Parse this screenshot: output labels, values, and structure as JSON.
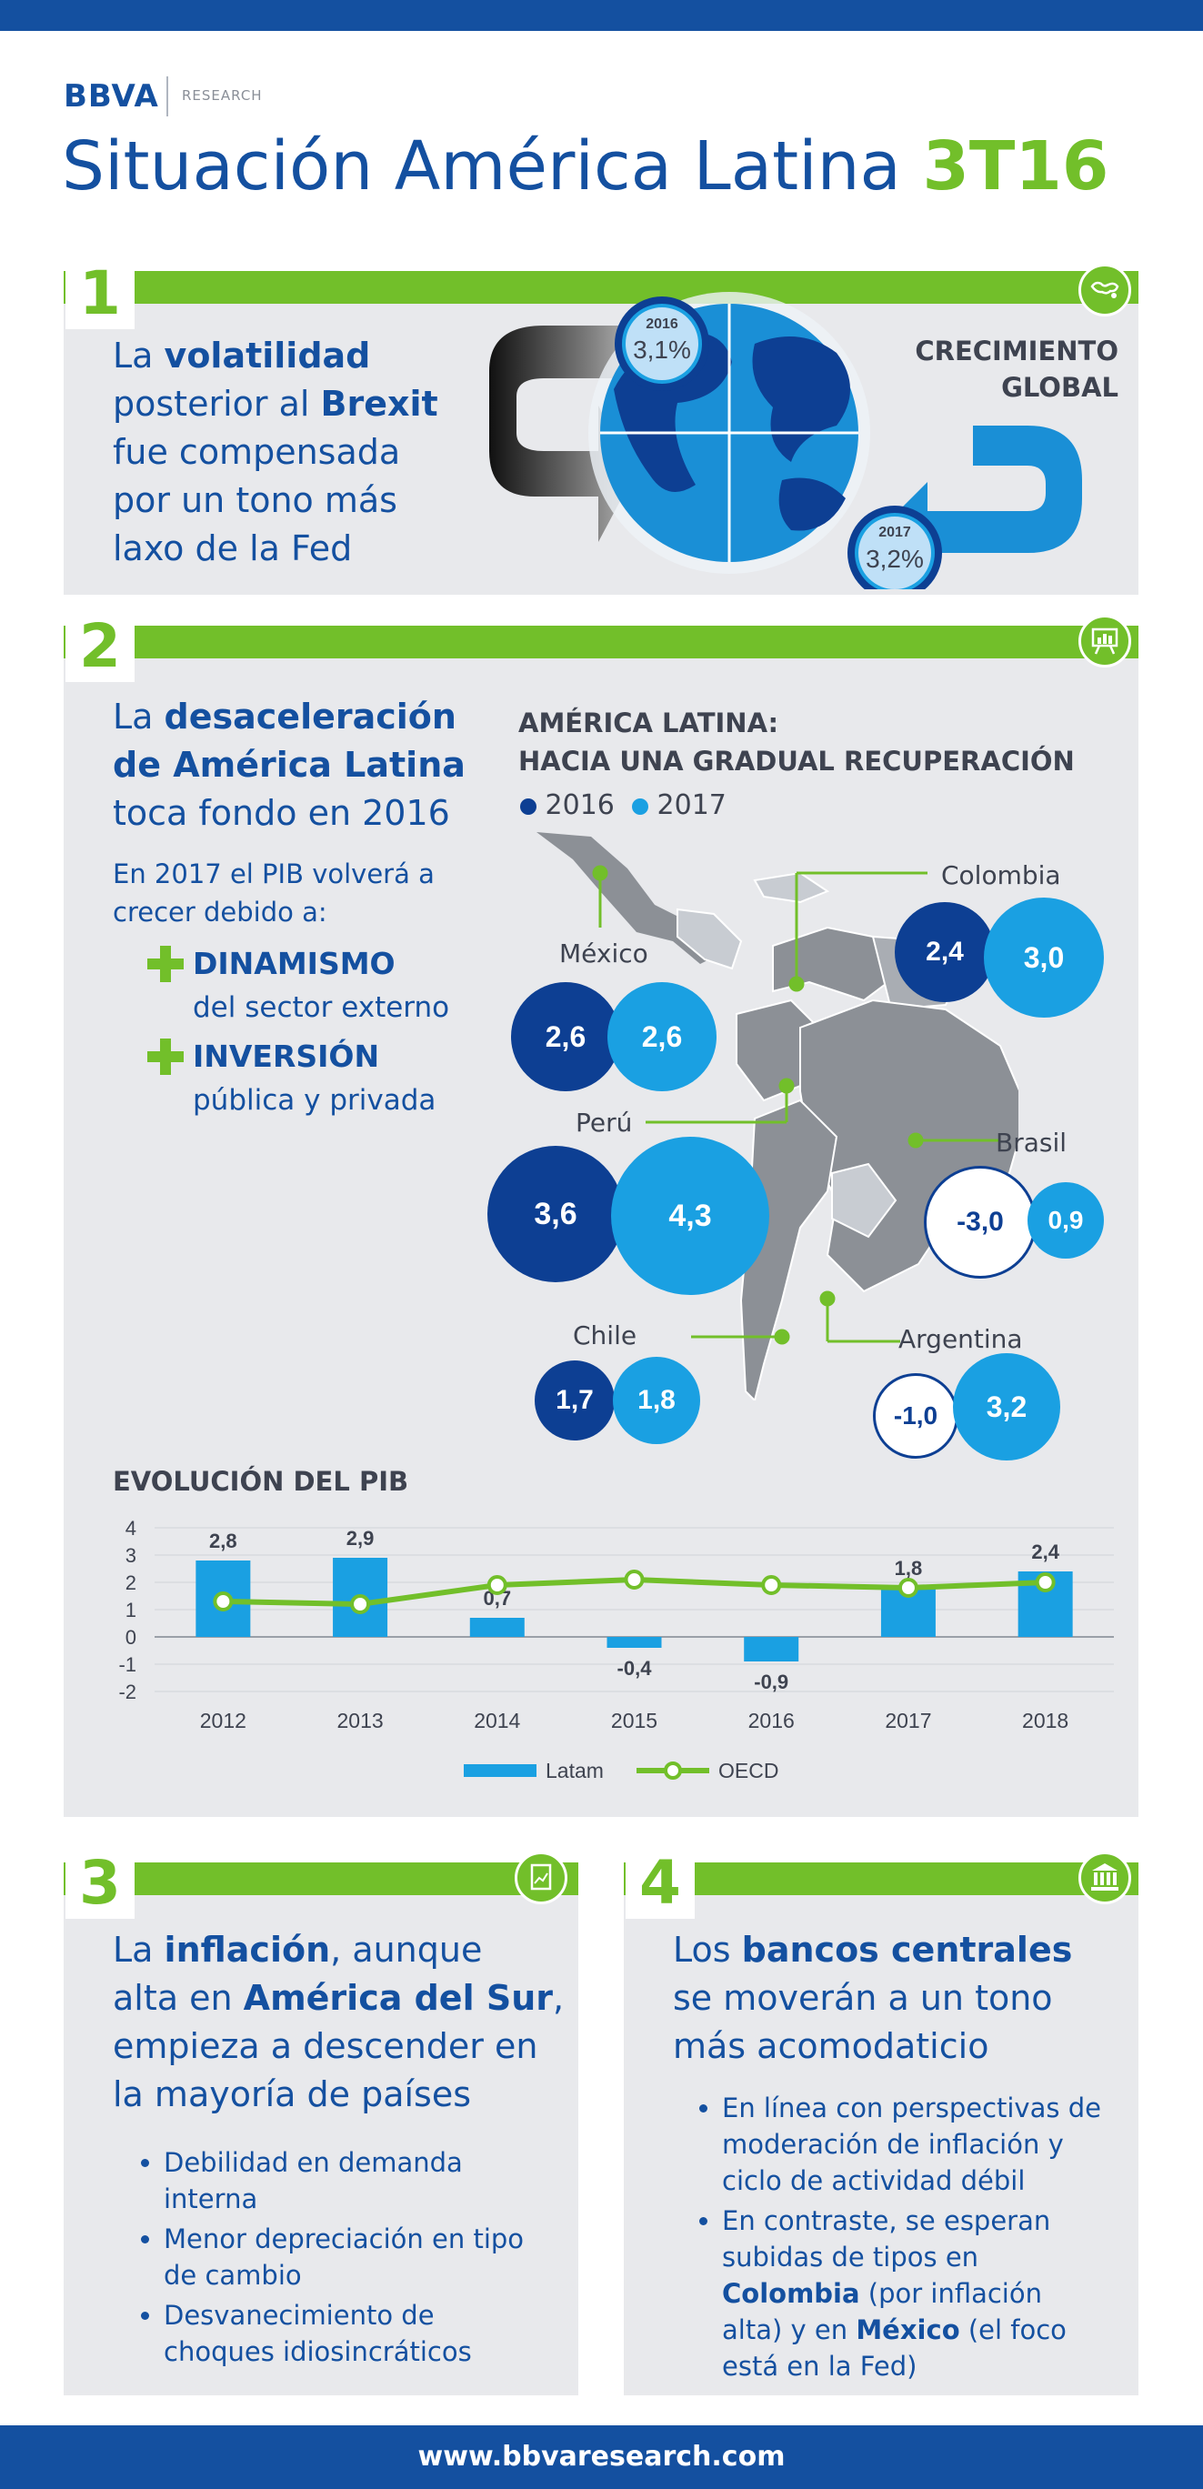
{
  "header": {
    "brand": "BBVA",
    "subbrand": "RESEARCH",
    "title": "Situación América Latina",
    "title_accent": "3T16"
  },
  "section1": {
    "number": "1",
    "headline": {
      "p1": "La ",
      "b1": "volatilidad",
      "p2": "posterior al ",
      "b2": "Brexit",
      "p3": "fue compensada",
      "p4": "por un tono más",
      "p5": "laxo de la Fed"
    },
    "graphic_label_1": "CRECIMIENTO",
    "graphic_label_2": "GLOBAL",
    "coin_2016": {
      "year": "2016",
      "value": "3,1%"
    },
    "coin_2017": {
      "year": "2017",
      "value": "3,2%"
    }
  },
  "section2": {
    "number": "2",
    "headline": {
      "p1": "La ",
      "b1": "desaceleración",
      "b2": "de América Latina",
      "p2": "toca fondo en 2016"
    },
    "sub": {
      "l1": "En 2017 el PIB volverá a",
      "l2": "crecer debido a:"
    },
    "drivers": [
      {
        "title": "DINAMISMO",
        "desc": "del sector externo"
      },
      {
        "title": "INVERSIÓN",
        "desc": "pública y privada"
      }
    ],
    "map_title_1": "AMÉRICA LATINA:",
    "map_title_2": "HACIA UNA GRADUAL RECUPERACIÓN",
    "legend": {
      "y2016": "2016",
      "y2017": "2017"
    },
    "countries": {
      "colombia": {
        "name": "Colombia",
        "v2016": "2,4",
        "v2017": "3,0"
      },
      "mexico": {
        "name": "México",
        "v2016": "2,6",
        "v2017": "2,6"
      },
      "peru": {
        "name": "Perú",
        "v2016": "3,6",
        "v2017": "4,3"
      },
      "brasil": {
        "name": "Brasil",
        "v2016": "-3,0",
        "v2017": "0,9"
      },
      "chile": {
        "name": "Chile",
        "v2016": "1,7",
        "v2017": "1,8"
      },
      "argentina": {
        "name": "Argentina",
        "v2016": "-1,0",
        "v2017": "3,2"
      }
    },
    "colors": {
      "dark": "#0d3f93",
      "light": "#1aa0e2",
      "green": "#72bf2a"
    }
  },
  "chart_data": {
    "type": "bar",
    "title": "EVOLUCIÓN DEL PIB",
    "categories": [
      "2012",
      "2013",
      "2014",
      "2015",
      "2016",
      "2017",
      "2018"
    ],
    "series": [
      {
        "name": "Latam",
        "type": "bar",
        "values": [
          2.8,
          2.9,
          0.7,
          -0.4,
          -0.9,
          1.8,
          2.4
        ],
        "labels": [
          "2,8",
          "2,9",
          "0,7",
          "-0,4",
          "-0,9",
          "1,8",
          "2,4"
        ],
        "color": "#1aa0e2"
      },
      {
        "name": "OECD",
        "type": "line",
        "values": [
          1.3,
          1.2,
          1.9,
          2.1,
          1.9,
          1.8,
          2.0
        ],
        "color": "#72bf2a"
      }
    ],
    "ylim": [
      -2,
      4
    ],
    "yticks": [
      "4",
      "3",
      "2",
      "1",
      "0",
      "-1",
      "-2"
    ],
    "grid": true,
    "legend": "bottom"
  },
  "section3": {
    "number": "3",
    "headline": {
      "p1": "La ",
      "b1": "inflación",
      "p2": ", aunque",
      "p3": "alta en ",
      "b2": "América del Sur",
      "p4": ",",
      "p5": "empieza a descender en",
      "p6": "la mayoría de países"
    },
    "bullets": [
      {
        "l1": "Debilidad en demanda",
        "l2": "interna"
      },
      {
        "l1": "Menor depreciación en tipo",
        "l2": "de cambio"
      },
      {
        "l1": "Desvanecimiento de",
        "l2": "choques idiosincráticos"
      }
    ]
  },
  "section4": {
    "number": "4",
    "headline": {
      "p1": "Los ",
      "b1": "bancos centrales",
      "p2": "se moverán a un tono",
      "p3": "más acomodaticio"
    },
    "bullet1": {
      "l1": "En línea con perspectivas de",
      "l2": "moderación de inflación y",
      "l3": "ciclo de actividad débil"
    },
    "bullet2": {
      "l1": "En contraste, se esperan",
      "l2": "subidas de tipos en",
      "b1": "Colombia",
      "p1": " (por inflación",
      "l3": "alta) y en ",
      "b2": "México",
      "p2": " (el foco",
      "l4": "está en la Fed)"
    }
  },
  "footer": {
    "url": "www.bbvaresearch.com"
  }
}
